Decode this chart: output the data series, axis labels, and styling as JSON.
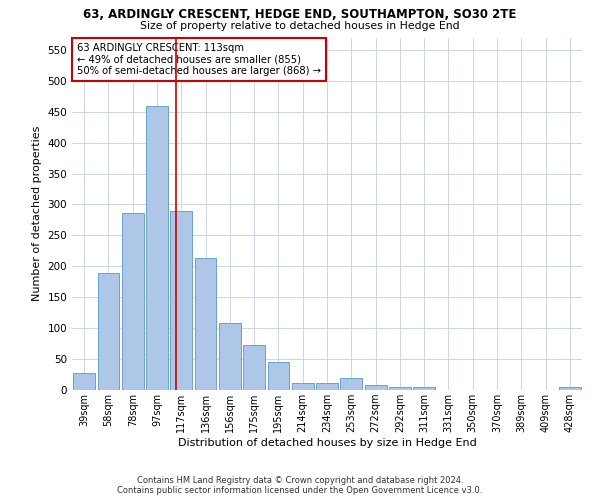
{
  "title": "63, ARDINGLY CRESCENT, HEDGE END, SOUTHAMPTON, SO30 2TE",
  "subtitle": "Size of property relative to detached houses in Hedge End",
  "xlabel": "Distribution of detached houses by size in Hedge End",
  "ylabel": "Number of detached properties",
  "categories": [
    "39sqm",
    "58sqm",
    "78sqm",
    "97sqm",
    "117sqm",
    "136sqm",
    "156sqm",
    "175sqm",
    "195sqm",
    "214sqm",
    "234sqm",
    "253sqm",
    "272sqm",
    "292sqm",
    "311sqm",
    "331sqm",
    "350sqm",
    "370sqm",
    "389sqm",
    "409sqm",
    "428sqm"
  ],
  "values": [
    28,
    190,
    287,
    460,
    290,
    213,
    108,
    73,
    45,
    12,
    11,
    20,
    8,
    5,
    5,
    0,
    0,
    0,
    0,
    0,
    5
  ],
  "bar_color": "#aec6e8",
  "bar_edge_color": "#5a96c8",
  "annotation_color": "#cc0000",
  "vline_color": "#cc0000",
  "marker_label": "63 ARDINGLY CRESCENT: 113sqm",
  "annotation_line1": "← 49% of detached houses are smaller (855)",
  "annotation_line2": "50% of semi-detached houses are larger (868) →",
  "ylim": [
    0,
    570
  ],
  "yticks": [
    0,
    50,
    100,
    150,
    200,
    250,
    300,
    350,
    400,
    450,
    500,
    550
  ],
  "footer_line1": "Contains HM Land Registry data © Crown copyright and database right 2024.",
  "footer_line2": "Contains public sector information licensed under the Open Government Licence v3.0.",
  "background_color": "#ffffff",
  "grid_color": "#c8d0dc"
}
